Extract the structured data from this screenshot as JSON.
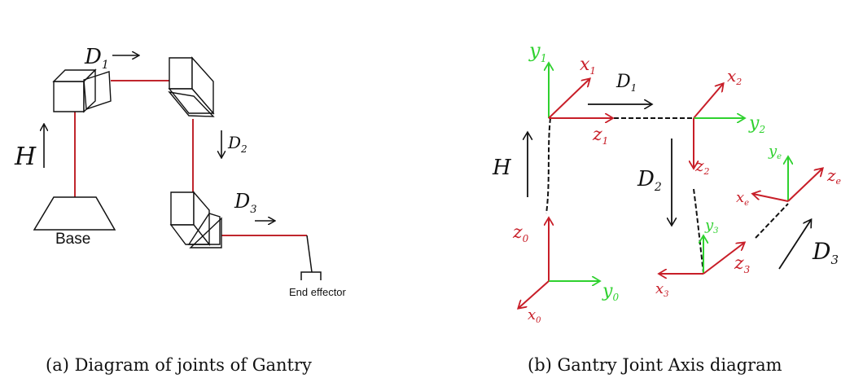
{
  "panel_a": {
    "caption": "(a)  Diagram of joints of Gantry",
    "labels": {
      "h": "H",
      "d1": "D",
      "d1_sub": "1",
      "d2": "D",
      "d2_sub": "2",
      "d3": "D",
      "d3_sub": "3",
      "base": "Base",
      "end_effector": "End effector"
    },
    "colors": {
      "link": "#c0262d",
      "outline": "#111111"
    }
  },
  "panel_b": {
    "caption": "(b) Gantry Joint Axis diagram",
    "labels": {
      "y1": "y",
      "y1_sub": "1",
      "x1": "x",
      "x1_sub": "1",
      "z1": "z",
      "z1_sub": "1",
      "d1": "D",
      "d1_sub": "1",
      "x2": "x",
      "x2_sub": "2",
      "y2": "y",
      "y2_sub": "2",
      "z2": "z",
      "z2_sub": "2",
      "d2": "D",
      "d2_sub": "2",
      "h": "H",
      "ye": "y",
      "ye_sub": "e",
      "xe": "x",
      "xe_sub": "e",
      "ze": "z",
      "ze_sub": "e",
      "y3": "y",
      "y3_sub": "3",
      "z0": "z",
      "z0_sub": "0",
      "x3": "x",
      "x3_sub": "3",
      "z3": "z",
      "z3_sub": "3",
      "d3": "D",
      "d3_sub": "3",
      "y0": "y",
      "y0_sub": "0",
      "x0": "x",
      "x0_sub": "0"
    },
    "colors": {
      "x_axis": "#c81e28",
      "y_axis": "#2fd12f",
      "z_axis": "#c81e28",
      "ink": "#111111"
    }
  }
}
